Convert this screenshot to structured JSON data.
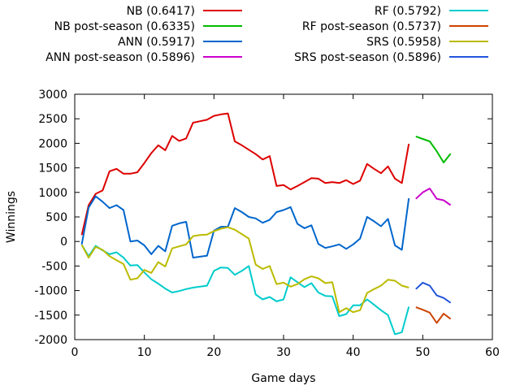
{
  "chart_data": {
    "type": "line",
    "title": "",
    "xlabel": "Game days",
    "ylabel": "Winnings",
    "xlim": [
      0,
      60
    ],
    "ylim": [
      -2000,
      3000
    ],
    "xticks": [
      0,
      10,
      20,
      30,
      40,
      50,
      60
    ],
    "yticks": [
      -2000,
      -1500,
      -1000,
      -500,
      0,
      500,
      1000,
      1500,
      2000,
      2500,
      3000
    ],
    "grid": false,
    "legend_position": "top",
    "series": [
      {
        "name": "NB (0.6417)",
        "color": "#dd0000",
        "x": [
          1,
          2,
          3,
          4,
          5,
          6,
          7,
          8,
          9,
          10,
          11,
          12,
          13,
          14,
          15,
          16,
          17,
          18,
          19,
          20,
          21,
          22,
          23,
          24,
          25,
          26,
          27,
          28,
          29,
          30,
          31,
          32,
          33,
          34,
          35,
          36,
          37,
          38,
          39,
          40,
          41,
          42,
          43,
          44,
          45,
          46,
          47,
          48
        ],
        "y": [
          130,
          740,
          970,
          1040,
          1430,
          1480,
          1380,
          1380,
          1410,
          1600,
          1800,
          1960,
          1860,
          2150,
          2050,
          2100,
          2420,
          2450,
          2480,
          2560,
          2590,
          2610,
          2040,
          1960,
          1870,
          1780,
          1670,
          1740,
          1130,
          1150,
          1060,
          1130,
          1210,
          1290,
          1280,
          1190,
          1210,
          1190,
          1250,
          1170,
          1240,
          1580,
          1480,
          1390,
          1530,
          1280,
          1190,
          1990
        ]
      },
      {
        "name": "NB post-season (0.6335)",
        "color": "#00bb00",
        "x": [
          49,
          50,
          51,
          52,
          53,
          54
        ],
        "y": [
          2140,
          2090,
          2040,
          1840,
          1610,
          1790
        ]
      },
      {
        "name": "ANN (0.5917)",
        "color": "#0066cc",
        "x": [
          1,
          2,
          3,
          4,
          5,
          6,
          7,
          8,
          9,
          10,
          11,
          12,
          13,
          14,
          15,
          16,
          17,
          18,
          19,
          20,
          21,
          22,
          23,
          24,
          25,
          26,
          27,
          28,
          29,
          30,
          31,
          32,
          33,
          34,
          35,
          36,
          37,
          38,
          39,
          40,
          41,
          42,
          43,
          44,
          45,
          46,
          47,
          48
        ],
        "y": [
          -60,
          690,
          920,
          810,
          680,
          740,
          640,
          0,
          20,
          -80,
          -260,
          -90,
          -200,
          320,
          370,
          400,
          -330,
          -310,
          -290,
          220,
          300,
          300,
          680,
          600,
          500,
          470,
          380,
          440,
          600,
          640,
          700,
          360,
          270,
          330,
          -50,
          -130,
          -100,
          -60,
          -150,
          -60,
          60,
          500,
          410,
          310,
          460,
          -80,
          -170,
          880
        ]
      },
      {
        "name": "ANN post-season (0.5896)",
        "color": "#cc00cc",
        "x": [
          49,
          50,
          51,
          52,
          53,
          54
        ],
        "y": [
          870,
          1000,
          1080,
          870,
          840,
          740
        ]
      },
      {
        "name": "RF (0.5792)",
        "color": "#00cccc",
        "x": [
          1,
          2,
          3,
          4,
          5,
          6,
          7,
          8,
          9,
          10,
          11,
          12,
          13,
          14,
          15,
          16,
          17,
          18,
          19,
          20,
          21,
          22,
          23,
          24,
          25,
          26,
          27,
          28,
          29,
          30,
          31,
          32,
          33,
          34,
          35,
          36,
          37,
          38,
          39,
          40,
          41,
          42,
          43,
          44,
          45,
          46,
          47,
          48
        ],
        "y": [
          -70,
          -300,
          -90,
          -180,
          -260,
          -220,
          -330,
          -490,
          -480,
          -630,
          -770,
          -860,
          -960,
          -1040,
          -1010,
          -970,
          -940,
          -920,
          -900,
          -600,
          -530,
          -540,
          -680,
          -600,
          -500,
          -1080,
          -1180,
          -1130,
          -1220,
          -1180,
          -730,
          -830,
          -930,
          -850,
          -1040,
          -1110,
          -1120,
          -1520,
          -1480,
          -1300,
          -1300,
          -1180,
          -1290,
          -1400,
          -1500,
          -1890,
          -1850,
          -1330
        ]
      },
      {
        "name": "RF post-season (0.5737)",
        "color": "#cc4400",
        "x": [
          49,
          50,
          51,
          52,
          53,
          54
        ],
        "y": [
          -1340,
          -1390,
          -1450,
          -1660,
          -1470,
          -1580
        ]
      },
      {
        "name": "SRS (0.5958)",
        "color": "#bbbb00",
        "x": [
          1,
          2,
          3,
          4,
          5,
          6,
          7,
          8,
          9,
          10,
          11,
          12,
          13,
          14,
          15,
          16,
          17,
          18,
          19,
          20,
          21,
          22,
          23,
          24,
          25,
          26,
          27,
          28,
          29,
          30,
          31,
          32,
          33,
          34,
          35,
          36,
          37,
          38,
          39,
          40,
          41,
          42,
          43,
          44,
          45,
          46,
          47,
          48
        ],
        "y": [
          -70,
          -330,
          -110,
          -170,
          -300,
          -380,
          -460,
          -780,
          -750,
          -580,
          -640,
          -420,
          -510,
          -140,
          -100,
          -60,
          110,
          130,
          140,
          210,
          260,
          290,
          240,
          150,
          60,
          -470,
          -560,
          -500,
          -870,
          -840,
          -920,
          -870,
          -770,
          -710,
          -750,
          -850,
          -830,
          -1440,
          -1360,
          -1440,
          -1400,
          -1050,
          -970,
          -900,
          -780,
          -800,
          -900,
          -940
        ]
      },
      {
        "name": "SRS post-season (0.5896)",
        "color": "#2255dd",
        "x": [
          49,
          50,
          51,
          52,
          53,
          54
        ],
        "y": [
          -970,
          -840,
          -900,
          -1100,
          -1150,
          -1250
        ]
      }
    ]
  }
}
